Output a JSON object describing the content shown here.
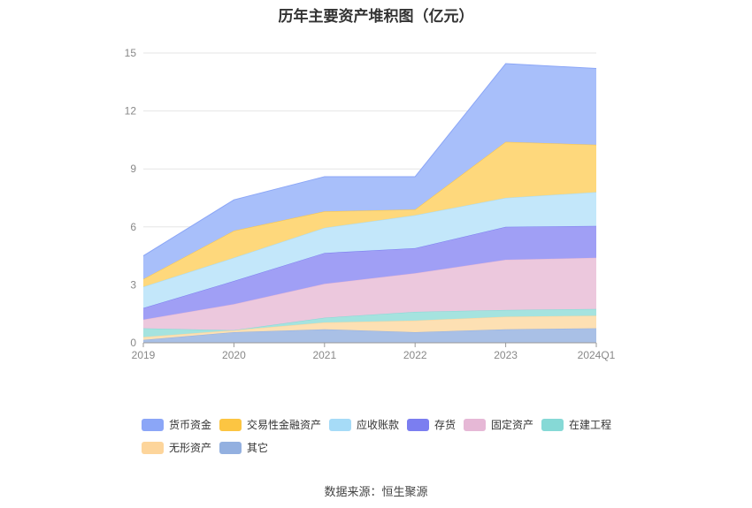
{
  "chart_data": {
    "type": "area",
    "stacked": true,
    "title": "历年主要资产堆积图（亿元）",
    "categories": [
      "2019",
      "2020",
      "2021",
      "2022",
      "2023",
      "2024Q1"
    ],
    "ylim": [
      0,
      15
    ],
    "yticks": [
      "0",
      "3",
      "6",
      "9",
      "12",
      "15"
    ],
    "grid": true,
    "legend_position": "bottom",
    "series": [
      {
        "name": "其它",
        "color": "#93b0e0",
        "fill": "#a9c0e6",
        "values": [
          0.15,
          0.55,
          0.7,
          0.55,
          0.7,
          0.75
        ]
      },
      {
        "name": "无形资产",
        "color": "#fdd59b",
        "fill": "#fde0b3",
        "values": [
          0.15,
          0.1,
          0.35,
          0.6,
          0.65,
          0.65
        ]
      },
      {
        "name": "在建工程",
        "color": "#86d9d6",
        "fill": "#a5e3df",
        "values": [
          0.45,
          0.0,
          0.25,
          0.45,
          0.35,
          0.35
        ]
      },
      {
        "name": "固定资产",
        "color": "#e6b8d6",
        "fill": "#ecc8dd",
        "values": [
          0.45,
          1.35,
          1.75,
          2.0,
          2.6,
          2.65
        ]
      },
      {
        "name": "存货",
        "color": "#7b7ef0",
        "fill": "#a09ff5",
        "values": [
          0.6,
          1.2,
          1.6,
          1.3,
          1.7,
          1.65
        ]
      },
      {
        "name": "应收账款",
        "color": "#a6dbf7",
        "fill": "#c3e7fa",
        "values": [
          1.1,
          1.2,
          1.3,
          1.7,
          1.5,
          1.75
        ]
      },
      {
        "name": "交易性金融资产",
        "color": "#fcc542",
        "fill": "#fed87c",
        "values": [
          0.4,
          1.4,
          0.85,
          0.3,
          2.9,
          2.45
        ]
      },
      {
        "name": "货币资金",
        "color": "#8ba6f7",
        "fill": "#a8bffa",
        "values": [
          1.2,
          1.6,
          1.8,
          1.7,
          4.05,
          3.95
        ]
      }
    ]
  },
  "legend": {
    "items": [
      {
        "label": "货币资金",
        "color": "#8ba6f7"
      },
      {
        "label": "交易性金融资产",
        "color": "#fcc542"
      },
      {
        "label": "应收账款",
        "color": "#a6dbf7"
      },
      {
        "label": "存货",
        "color": "#7b7ef0"
      },
      {
        "label": "固定资产",
        "color": "#e6b8d6"
      },
      {
        "label": "在建工程",
        "color": "#86d9d6"
      },
      {
        "label": "无形资产",
        "color": "#fdd59b"
      },
      {
        "label": "其它",
        "color": "#93b0e0"
      }
    ]
  },
  "source": "数据来源：恒生聚源"
}
